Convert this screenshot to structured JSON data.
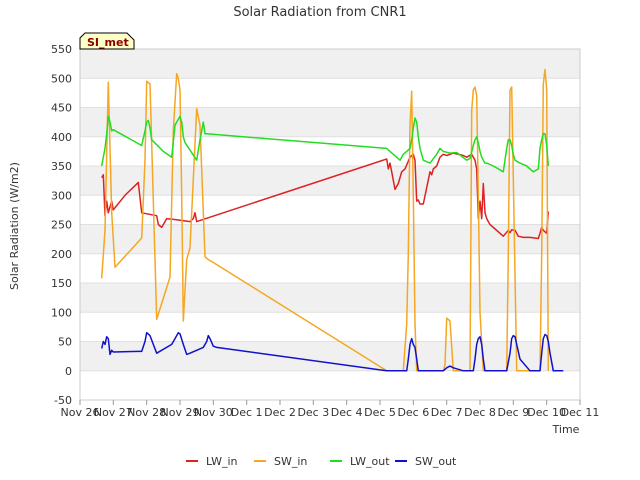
{
  "chart_data": {
    "type": "line",
    "title": "Solar Radiation from CNR1",
    "xlabel": "Time",
    "ylabel": "Solar Radiation (W/m2)",
    "badge": "SI_met",
    "xlim": [
      0,
      15
    ],
    "ylim": [
      -50,
      550
    ],
    "grid": "horizontal-bands",
    "legend_position": "bottom",
    "x_ticks": [
      {
        "value": 0,
        "label": "Nov 26"
      },
      {
        "value": 1,
        "label": "Nov 27"
      },
      {
        "value": 2,
        "label": "Nov 28"
      },
      {
        "value": 3,
        "label": "Nov 29"
      },
      {
        "value": 4,
        "label": "Nov 30"
      },
      {
        "value": 5,
        "label": "Dec 1"
      },
      {
        "value": 6,
        "label": "Dec 2"
      },
      {
        "value": 7,
        "label": "Dec 3"
      },
      {
        "value": 8,
        "label": "Dec 4"
      },
      {
        "value": 9,
        "label": "Dec 5"
      },
      {
        "value": 10,
        "label": "Dec 6"
      },
      {
        "value": 11,
        "label": "Dec 7"
      },
      {
        "value": 12,
        "label": "Dec 8"
      },
      {
        "value": 13,
        "label": "Dec 9"
      },
      {
        "value": 14,
        "label": "Dec 10"
      },
      {
        "value": 15,
        "label": "Dec 11"
      }
    ],
    "y_ticks": [
      -50,
      0,
      50,
      100,
      150,
      200,
      250,
      300,
      350,
      400,
      450,
      500,
      550
    ],
    "series": [
      {
        "name": "LW_in",
        "color": "#dd2222",
        "x": [
          0.65,
          0.7,
          0.75,
          0.8,
          0.85,
          0.9,
          0.95,
          1.0,
          1.35,
          1.75,
          1.85,
          2.3,
          2.35,
          2.45,
          2.6,
          2.9,
          3.3,
          3.4,
          3.45,
          3.5,
          9.2,
          9.25,
          9.3,
          9.35,
          9.45,
          9.55,
          9.65,
          9.75,
          9.9,
          10.0,
          10.05,
          10.1,
          10.15,
          10.2,
          10.3,
          10.5,
          10.55,
          10.6,
          10.7,
          10.8,
          10.9,
          11.0,
          11.2,
          11.5,
          11.6,
          11.75,
          11.85,
          11.9,
          11.95,
          12.0,
          12.05,
          12.1,
          12.15,
          12.2,
          12.25,
          12.3,
          12.7,
          12.85,
          12.9,
          12.95,
          13.05,
          13.15,
          13.3,
          13.5,
          13.75,
          13.8,
          13.85,
          13.9,
          14.0,
          14.05
        ],
        "values": [
          330,
          335,
          265,
          290,
          270,
          280,
          290,
          275,
          300,
          322,
          270,
          265,
          250,
          245,
          260,
          258,
          255,
          260,
          270,
          255,
          362,
          345,
          355,
          340,
          310,
          320,
          340,
          345,
          365,
          370,
          360,
          290,
          292,
          285,
          285,
          340,
          335,
          345,
          350,
          365,
          370,
          368,
          372,
          368,
          365,
          370,
          360,
          345,
          260,
          290,
          260,
          320,
          270,
          260,
          255,
          250,
          230,
          240,
          236,
          241,
          240,
          230,
          228,
          228,
          226,
          235,
          245,
          240,
          235,
          272
        ]
      },
      {
        "name": "SW_in",
        "color": "#f5a623",
        "x": [
          0.65,
          0.75,
          0.85,
          0.95,
          1.05,
          1.85,
          1.95,
          2.0,
          2.1,
          2.3,
          2.7,
          2.8,
          2.9,
          2.95,
          3.0,
          3.05,
          3.1,
          3.2,
          3.3,
          3.5,
          3.6,
          3.75,
          3.8,
          3.85,
          4.0,
          9.2,
          9.3,
          9.4,
          9.7,
          9.8,
          9.85,
          9.9,
          9.95,
          10.0,
          10.05,
          10.1,
          10.15,
          10.2,
          10.3,
          10.5,
          10.85,
          10.9,
          10.95,
          11.0,
          11.1,
          11.2,
          11.4,
          11.7,
          11.75,
          11.8,
          11.85,
          11.9,
          11.95,
          12.0,
          12.1,
          12.15,
          12.2,
          12.3,
          12.5,
          12.6,
          12.7,
          12.8,
          12.85,
          12.9,
          12.95,
          13.0,
          13.1,
          13.25,
          13.4,
          13.6,
          13.7,
          13.75,
          13.8,
          13.85,
          13.9,
          13.95,
          14.0,
          14.05
        ],
        "values": [
          158,
          240,
          493,
          270,
          177,
          227,
          360,
          495,
          490,
          88,
          160,
          410,
          508,
          500,
          480,
          300,
          85,
          190,
          210,
          448,
          420,
          195,
          192,
          190,
          185,
          0,
          0,
          0,
          0,
          80,
          200,
          420,
          478,
          300,
          80,
          0,
          0,
          0,
          0,
          0,
          0,
          0,
          10,
          90,
          85,
          0,
          0,
          0,
          445,
          480,
          485,
          470,
          300,
          100,
          0,
          0,
          0,
          0,
          0,
          0,
          0,
          0,
          200,
          480,
          485,
          330,
          0,
          0,
          0,
          0,
          0,
          0,
          0,
          200,
          490,
          515,
          480,
          0
        ]
      },
      {
        "name": "LW_out",
        "color": "#22dd22",
        "x": [
          0.65,
          0.7,
          0.75,
          0.8,
          0.85,
          0.9,
          0.95,
          1.0,
          1.85,
          1.95,
          2.0,
          2.05,
          2.1,
          2.15,
          2.5,
          2.75,
          2.85,
          2.95,
          3.0,
          3.05,
          3.1,
          3.15,
          3.5,
          3.6,
          3.65,
          3.7,
          3.75,
          3.8,
          9.2,
          9.3,
          9.5,
          9.6,
          9.7,
          9.8,
          9.9,
          9.95,
          10.0,
          10.05,
          10.1,
          10.15,
          10.2,
          10.3,
          10.5,
          10.7,
          10.8,
          10.9,
          11.1,
          11.3,
          11.6,
          11.7,
          11.8,
          11.85,
          11.9,
          11.95,
          12.0,
          12.05,
          12.1,
          12.15,
          12.2,
          12.4,
          12.7,
          12.8,
          12.85,
          12.9,
          12.95,
          13.0,
          13.05,
          13.1,
          13.2,
          13.4,
          13.5,
          13.6,
          13.75,
          13.8,
          13.85,
          13.9,
          13.95,
          14.0,
          14.05
        ],
        "values": [
          350,
          365,
          380,
          405,
          435,
          425,
          410,
          412,
          385,
          410,
          425,
          428,
          415,
          395,
          375,
          365,
          420,
          430,
          435,
          425,
          400,
          390,
          360,
          395,
          410,
          425,
          405,
          405,
          380,
          375,
          365,
          360,
          370,
          375,
          380,
          395,
          415,
          432,
          425,
          400,
          380,
          360,
          355,
          370,
          380,
          375,
          372,
          373,
          360,
          363,
          385,
          395,
          400,
          390,
          375,
          365,
          360,
          355,
          355,
          350,
          340,
          380,
          395,
          395,
          385,
          370,
          360,
          358,
          355,
          350,
          345,
          340,
          345,
          380,
          395,
          405,
          405,
          385,
          350
        ]
      },
      {
        "name": "SW_out",
        "color": "#1111cc",
        "x": [
          0.65,
          0.7,
          0.75,
          0.8,
          0.85,
          0.9,
          0.95,
          1.0,
          1.75,
          1.85,
          1.95,
          2.0,
          2.1,
          2.2,
          2.3,
          2.75,
          2.85,
          2.95,
          3.0,
          3.1,
          3.2,
          3.3,
          3.7,
          3.8,
          3.85,
          3.9,
          4.0,
          4.1,
          9.2,
          9.4,
          9.7,
          9.8,
          9.85,
          9.9,
          9.95,
          10.0,
          10.05,
          10.1,
          10.15,
          10.2,
          10.3,
          10.5,
          10.7,
          10.9,
          11.0,
          11.1,
          11.2,
          11.5,
          11.8,
          11.85,
          11.9,
          11.95,
          12.0,
          12.05,
          12.1,
          12.15,
          12.2,
          12.5,
          12.7,
          12.8,
          12.9,
          12.95,
          13.0,
          13.05,
          13.1,
          13.2,
          13.5,
          13.75,
          13.8,
          13.85,
          13.9,
          13.95,
          14.0,
          14.05,
          14.1,
          14.2,
          14.5
        ],
        "values": [
          38,
          50,
          45,
          58,
          55,
          28,
          35,
          32,
          33,
          33,
          50,
          65,
          60,
          45,
          30,
          45,
          55,
          65,
          63,
          45,
          28,
          30,
          40,
          50,
          60,
          55,
          42,
          40,
          0,
          0,
          0,
          0,
          20,
          45,
          55,
          45,
          40,
          20,
          0,
          0,
          0,
          0,
          0,
          0,
          5,
          8,
          5,
          0,
          0,
          20,
          45,
          55,
          58,
          45,
          20,
          0,
          0,
          0,
          0,
          0,
          30,
          55,
          60,
          58,
          45,
          20,
          0,
          0,
          0,
          30,
          55,
          62,
          60,
          50,
          30,
          0,
          0
        ]
      }
    ]
  }
}
